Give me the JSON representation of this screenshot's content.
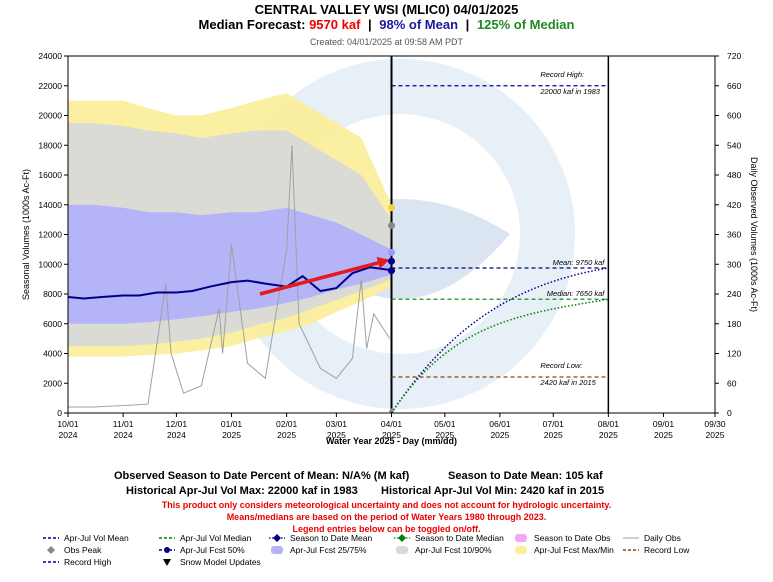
{
  "header": {
    "title": "CENTRAL VALLEY WSI (MLIC0)  04/01/2025",
    "forecast_prefix": "Median Forecast:",
    "forecast_value": "9570 kaf",
    "pct_mean": "98% of Mean",
    "pct_median": "125% of Median",
    "separator": "|",
    "created": "Created: 04/01/2025 at 09:58 AM PDT"
  },
  "colors": {
    "maxmin": "#fbee9c",
    "p1090": "#d9d9d9",
    "p2575": "#b2b2f8",
    "mean_line": "#00008b",
    "median_line": "#008000",
    "record_line": "#8b4513",
    "record_high": "#00008b",
    "daily_obs": "#a0a0a0",
    "arrow": "#e41a1c"
  },
  "chart_data": {
    "type": "line",
    "x_axis_label": "Water Year 2025 - Day (mm/dd)",
    "y_left_label": "Seasonal Volumes (1000s Ac-Ft)",
    "y_right_label": "Daily Observed Volumes (1000s Ac-Ft)",
    "y_left_range": [
      0,
      24000
    ],
    "y_right_range": [
      0,
      720
    ],
    "x_range": [
      "2024-10-01",
      "2025-09-30"
    ],
    "y_left_ticks": [
      "0",
      "2000",
      "4000",
      "6000",
      "8000",
      "10000",
      "12000",
      "14000",
      "16000",
      "18000",
      "20000",
      "22000",
      "24000"
    ],
    "y_right_ticks": [
      "0",
      "60",
      "120",
      "180",
      "240",
      "300",
      "360",
      "420",
      "480",
      "540",
      "600",
      "660",
      "720"
    ],
    "x_ticks": [
      {
        "date": "2024-10-01",
        "l1": "10/01",
        "l2": "2024"
      },
      {
        "date": "2024-11-01",
        "l1": "11/01",
        "l2": "2024"
      },
      {
        "date": "2024-12-01",
        "l1": "12/01",
        "l2": "2024"
      },
      {
        "date": "2025-01-01",
        "l1": "01/01",
        "l2": "2025"
      },
      {
        "date": "2025-02-01",
        "l1": "02/01",
        "l2": "2025"
      },
      {
        "date": "2025-03-01",
        "l1": "03/01",
        "l2": "2025"
      },
      {
        "date": "2025-04-01",
        "l1": "04/01",
        "l2": "2025"
      },
      {
        "date": "2025-05-01",
        "l1": "05/01",
        "l2": "2025"
      },
      {
        "date": "2025-06-01",
        "l1": "06/01",
        "l2": "2025"
      },
      {
        "date": "2025-07-01",
        "l1": "07/01",
        "l2": "2025"
      },
      {
        "date": "2025-08-01",
        "l1": "08/01",
        "l2": "2025"
      },
      {
        "date": "2025-09-01",
        "l1": "09/01",
        "l2": "2025"
      },
      {
        "date": "2025-09-30",
        "l1": "09/30",
        "l2": "2025"
      }
    ],
    "forecast_date": "2025-04-01",
    "season_end_date": "2025-08-01",
    "bands_dates": [
      "2024-10-01",
      "2024-10-15",
      "2024-11-01",
      "2024-11-15",
      "2024-12-01",
      "2024-12-15",
      "2025-01-01",
      "2025-01-15",
      "2025-02-01",
      "2025-02-15",
      "2025-03-01",
      "2025-03-15",
      "2025-04-01"
    ],
    "band_max": [
      21000,
      21000,
      21000,
      20500,
      20000,
      20000,
      20500,
      21000,
      21500,
      20500,
      19500,
      18500,
      14000
    ],
    "band_min": [
      3800,
      3800,
      3800,
      3900,
      4000,
      4200,
      4500,
      5000,
      5500,
      6000,
      6800,
      7500,
      8500
    ],
    "band_p90": [
      19500,
      19500,
      19300,
      19000,
      18800,
      18500,
      18800,
      19000,
      19000,
      18000,
      17000,
      16000,
      13000
    ],
    "band_p10": [
      4500,
      4500,
      4500,
      4600,
      4800,
      5000,
      5400,
      5900,
      6400,
      7000,
      7600,
      8200,
      9000
    ],
    "band_p75": [
      14000,
      14000,
      13800,
      13500,
      13500,
      13300,
      13500,
      13500,
      13800,
      13300,
      12800,
      12000,
      11000
    ],
    "band_p25": [
      6000,
      6000,
      6000,
      6100,
      6300,
      6500,
      6800,
      7000,
      7400,
      7800,
      8300,
      8700,
      9300
    ],
    "fcst50_dates": [
      "2024-10-01",
      "2024-10-10",
      "2024-10-20",
      "2024-11-01",
      "2024-11-10",
      "2024-11-20",
      "2024-12-01",
      "2024-12-10",
      "2024-12-20",
      "2025-01-01",
      "2025-01-10",
      "2025-01-20",
      "2025-02-01",
      "2025-02-10",
      "2025-02-20",
      "2025-03-01",
      "2025-03-10",
      "2025-03-20",
      "2025-04-01"
    ],
    "fcst50_values": [
      7800,
      7700,
      7800,
      7900,
      7900,
      8100,
      8100,
      8200,
      8500,
      8800,
      8900,
      8700,
      8500,
      9200,
      8200,
      8400,
      9400,
      9800,
      9600
    ],
    "trend_arrow": {
      "from_date": "2025-01-17",
      "from_value": 8000,
      "to_date": "2025-03-31",
      "to_value": 10300
    },
    "end_markers": [
      {
        "value": 13800,
        "color": "#f5cf4a"
      },
      {
        "value": 12600,
        "color": "#888888"
      },
      {
        "value": 10800,
        "color": "#9a9af5"
      },
      {
        "value": 9570,
        "color": "#00008b"
      },
      {
        "value": 10200,
        "color": "#00008b"
      }
    ],
    "daily_obs_dates": [
      "2024-10-01",
      "2024-10-15",
      "2024-11-01",
      "2024-11-15",
      "2024-11-25",
      "2024-11-28",
      "2024-12-05",
      "2024-12-15",
      "2024-12-25",
      "2024-12-27",
      "2025-01-01",
      "2025-01-10",
      "2025-01-20",
      "2025-02-01",
      "2025-02-04",
      "2025-02-08",
      "2025-02-12",
      "2025-02-20",
      "2025-03-01",
      "2025-03-10",
      "2025-03-15",
      "2025-03-18",
      "2025-03-22",
      "2025-03-31"
    ],
    "daily_obs_values": [
      12,
      12,
      15,
      18,
      260,
      120,
      40,
      55,
      210,
      120,
      340,
      100,
      70,
      330,
      540,
      180,
      150,
      90,
      70,
      110,
      270,
      130,
      200,
      150
    ],
    "reference_lines": [
      {
        "name": "record_high",
        "label1": "Record High:",
        "label2": "22000 kaf in 1983",
        "value": 22000
      },
      {
        "name": "mean",
        "label1": "Mean: 9750 kaf",
        "label2": "",
        "value": 9750
      },
      {
        "name": "median",
        "label1": "Median: 7650 kaf",
        "label2": "",
        "value": 7650
      },
      {
        "name": "record_low",
        "label1": "Record Low:",
        "label2": "2420 kaf in 2015",
        "value": 2420
      }
    ],
    "projection_mean_end": 9750,
    "projection_median_end": 7650
  },
  "stats": {
    "row1_left": "Observed Season to Date Percent of Mean: N/A% (M kaf)",
    "row1_right": "Season to Date Mean: 105 kaf",
    "row2_left": "Historical Apr-Jul Vol Max: 22000 kaf in 1983",
    "row2_right": "Historical Apr-Jul Vol Min: 2420 kaf in 2015"
  },
  "notes": {
    "line1": "This product only considers meteorological uncertainty and does not account for hydrologic uncertainty.",
    "line2": "Means/medians are based on the period of Water Years 1980 through 2023.",
    "line3": "Legend entries below can be toggled on/off."
  },
  "legend": [
    {
      "key": "apr_jul_vol_mean",
      "label": "Apr-Jul Vol Mean",
      "style": "dash",
      "color": "#00008b"
    },
    {
      "key": "apr_jul_vol_median",
      "label": "Apr-Jul Vol Median",
      "style": "dash",
      "color": "#008000"
    },
    {
      "key": "season_to_date_mean",
      "label": "Season to Date Mean",
      "style": "dotmarker",
      "color": "#00008b"
    },
    {
      "key": "season_to_date_median",
      "label": "Season to Date Median",
      "style": "dotmarker",
      "color": "#008000"
    },
    {
      "key": "season_to_date_obs",
      "label": "Season to Date Obs",
      "style": "swatch",
      "color": "#f5a8f0"
    },
    {
      "key": "daily_obs",
      "label": "Daily Obs",
      "style": "line",
      "color": "#a0a0a0"
    },
    {
      "key": "obs_peak",
      "label": "Obs Peak",
      "style": "diamond",
      "color": "#888888"
    },
    {
      "key": "apr_jul_fcst_50",
      "label": "Apr-Jul Fcst 50%",
      "style": "linedot",
      "color": "#00008b"
    },
    {
      "key": "apr_jul_fcst_2575",
      "label": "Apr-Jul Fcst 25/75%",
      "style": "swatch",
      "color": "#b2b2f8"
    },
    {
      "key": "apr_jul_fcst_1090",
      "label": "Apr-Jul Fcst 10/90%",
      "style": "swatch",
      "color": "#d9d9d9"
    },
    {
      "key": "apr_jul_fcst_maxmin",
      "label": "Apr-Jul Fcst Max/Min",
      "style": "swatch",
      "color": "#fbee9c"
    },
    {
      "key": "record_low",
      "label": "Record Low",
      "style": "dash",
      "color": "#8b4513"
    },
    {
      "key": "record_high",
      "label": "Record High",
      "style": "dash",
      "color": "#00008b"
    },
    {
      "key": "snow_model_updates",
      "label": "Snow Model Updates",
      "style": "triangle",
      "color": "#000000"
    }
  ]
}
